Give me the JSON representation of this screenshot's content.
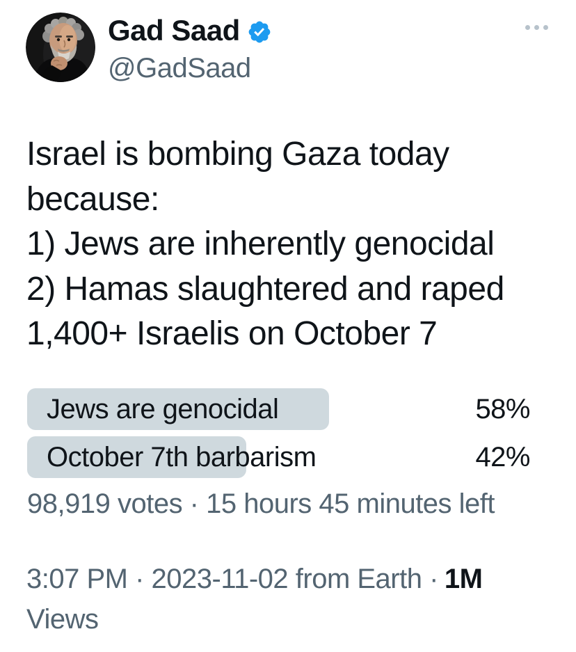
{
  "colors": {
    "text_primary": "#0f1419",
    "text_secondary": "#536471",
    "accent_blue": "#1d9bf0",
    "poll_bar_fill": "#cfd9de",
    "more_icon_dots": "#b7c2cb"
  },
  "header": {
    "display_name": "Gad Saad",
    "handle": "@GadSaad",
    "verified": true,
    "icons": {
      "verified": "verified-badge-seal-check",
      "more": "ellipsis-three-dots",
      "avatar": "profile-photo-portrait"
    }
  },
  "tweet": {
    "text": "Israel is bombing Gaza today\nbecause:\n1) Jews are inherently genocidal\n2) Hamas slaughtered and raped\n1,400+ Israelis on October 7"
  },
  "poll": {
    "options": [
      {
        "label": "Jews are genocidal",
        "percent_label": "58%",
        "percent_value": 58
      },
      {
        "label": "October 7th barbarism",
        "percent_label": "42%",
        "percent_value": 42
      }
    ],
    "status": "98,919 votes · 15 hours 45 minutes left"
  },
  "meta": {
    "timestamp": "3:07 PM · 2023-11-02 from Earth ·",
    "views_count": "1M",
    "views_label": "Views"
  }
}
